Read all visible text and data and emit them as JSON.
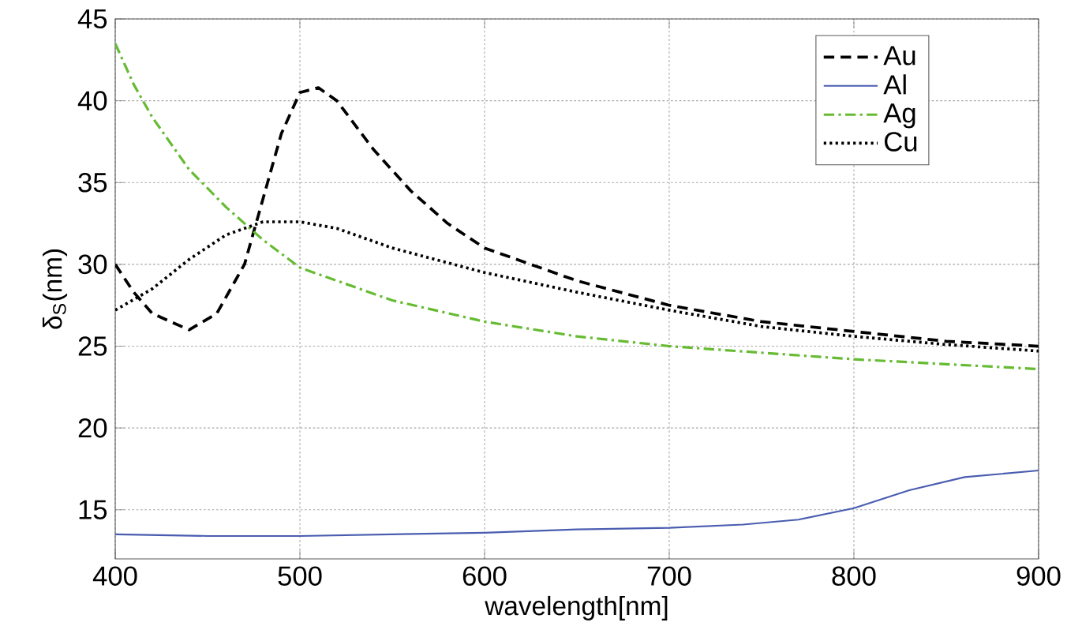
{
  "chart_data": {
    "type": "line",
    "xlabel": "wavelength[nm]",
    "ylabel": "δ$_{S}$(nm)",
    "xlim": [
      400,
      900
    ],
    "ylim": [
      12,
      45
    ],
    "xticks": [
      400,
      500,
      600,
      700,
      800,
      900
    ],
    "yticks": [
      15,
      20,
      25,
      30,
      35,
      40,
      45
    ],
    "grid": true,
    "legend": "top right",
    "series": [
      {
        "name": "Au",
        "color": "#000000",
        "line_style": "dashed",
        "x": [
          400,
          410,
          420,
          440,
          455,
          470,
          480,
          490,
          500,
          510,
          520,
          540,
          560,
          580,
          600,
          650,
          700,
          750,
          800,
          850,
          900
        ],
        "values": [
          30,
          28.3,
          27,
          26,
          27,
          30,
          34,
          38,
          40.5,
          40.8,
          40,
          37,
          34.5,
          32.5,
          31,
          29,
          27.5,
          26.5,
          25.9,
          25.3,
          25
        ]
      },
      {
        "name": "Al",
        "color": "#4a5db0",
        "line_style": "solid",
        "x": [
          400,
          450,
          500,
          550,
          600,
          650,
          700,
          740,
          770,
          800,
          830,
          860,
          900
        ],
        "values": [
          13.5,
          13.4,
          13.4,
          13.5,
          13.6,
          13.8,
          13.9,
          14.1,
          14.4,
          15.1,
          16.2,
          17,
          17.4
        ]
      },
      {
        "name": "Ag",
        "color": "#66bb33",
        "line_style": "dashdotted",
        "x": [
          400,
          410,
          420,
          440,
          460,
          480,
          500,
          550,
          600,
          650,
          700,
          750,
          800,
          850,
          900
        ],
        "values": [
          43.5,
          41,
          39,
          35.8,
          33.5,
          31.5,
          29.8,
          27.8,
          26.5,
          25.6,
          25,
          24.6,
          24.2,
          23.9,
          23.6
        ]
      },
      {
        "name": "Cu",
        "color": "#000000",
        "line_style": "dotted",
        "x": [
          400,
          420,
          440,
          460,
          480,
          500,
          520,
          550,
          600,
          650,
          700,
          750,
          800,
          850,
          900
        ],
        "values": [
          27.2,
          28.5,
          30.3,
          31.8,
          32.6,
          32.6,
          32.2,
          31,
          29.5,
          28.3,
          27.2,
          26.2,
          25.6,
          25.1,
          24.7
        ]
      }
    ]
  }
}
